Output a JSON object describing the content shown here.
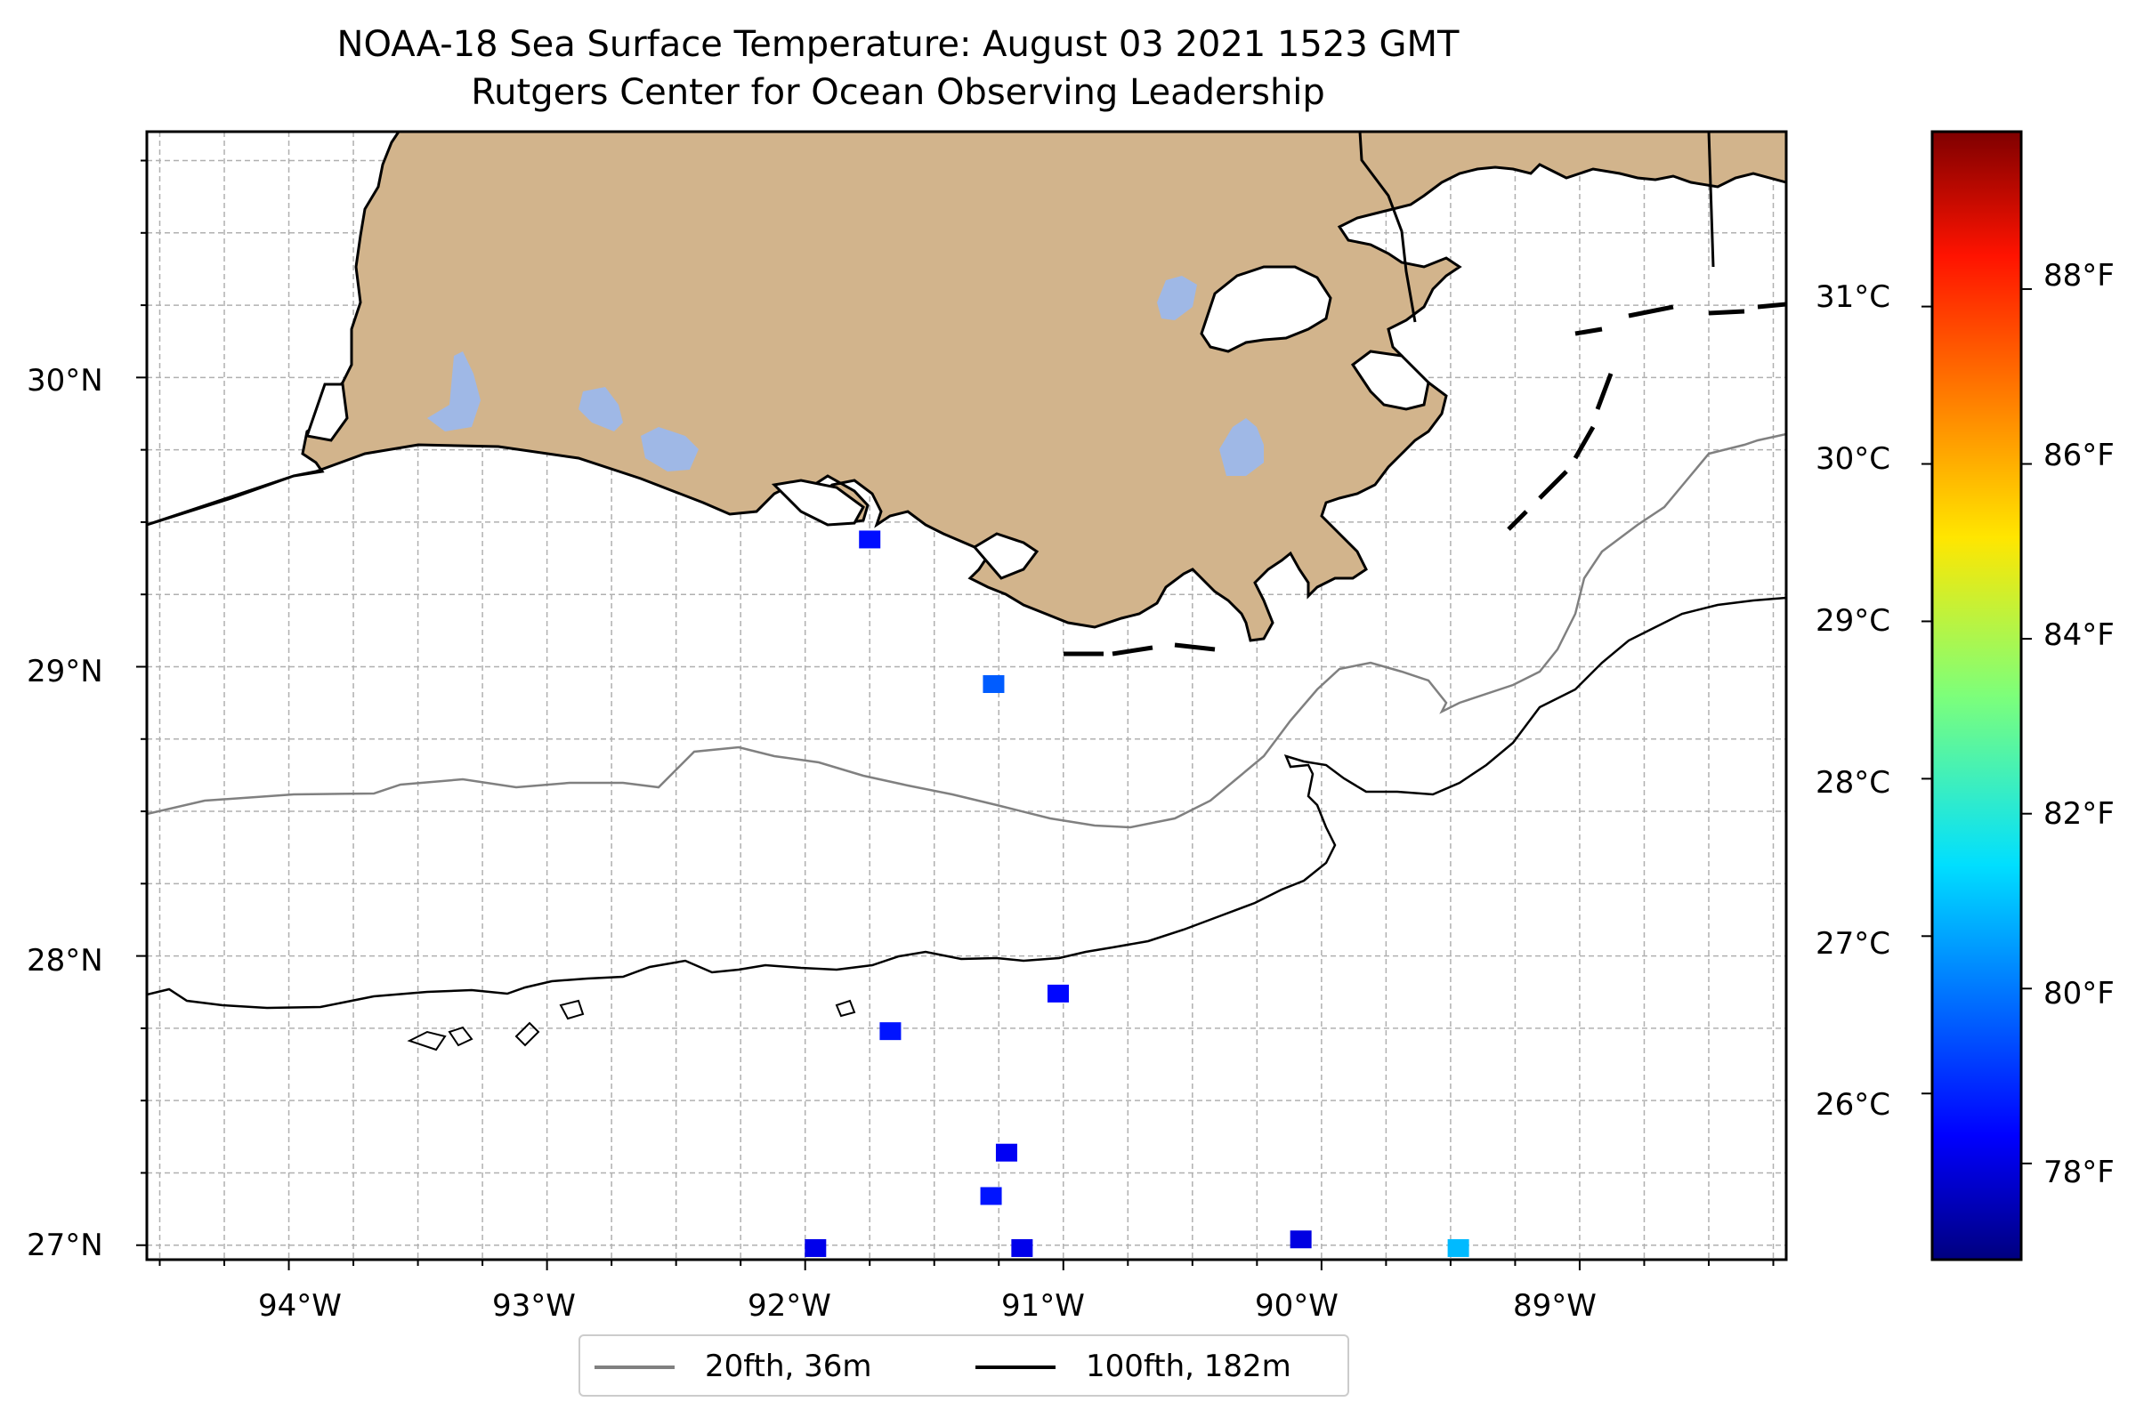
{
  "title": {
    "line1": "NOAA-18 Sea Surface Temperature: August 03 2021 1523 GMT",
    "line2": "Rutgers Center for Ocean Observing Leadership"
  },
  "map": {
    "lon_range": [
      -94.55,
      -88.2
    ],
    "lat_range": [
      26.95,
      30.85
    ],
    "x_ticks": [
      {
        "lon": -94,
        "label": "94°W"
      },
      {
        "lon": -93,
        "label": "93°W"
      },
      {
        "lon": -92,
        "label": "92°W"
      },
      {
        "lon": -91,
        "label": "91°W"
      },
      {
        "lon": -90,
        "label": "90°W"
      },
      {
        "lon": -89,
        "label": "89°W"
      }
    ],
    "y_ticks": [
      {
        "lat": 30,
        "label": "30°N"
      },
      {
        "lat": 29,
        "label": "29°N"
      },
      {
        "lat": 28,
        "label": "28°N"
      },
      {
        "lat": 27,
        "label": "27°N"
      }
    ],
    "land_color": "#d2b48c",
    "lake_color": "#9fb8e6",
    "gridlines": true
  },
  "legend": {
    "location": "below map",
    "entries": [
      {
        "label": "20fth, 36m",
        "color": "#808080"
      },
      {
        "label": "100fth, 182m",
        "color": "#000000"
      }
    ]
  },
  "colorbar": {
    "colormap": "jet",
    "range_f": [
      76.9,
      89.8
    ],
    "celsius_ticks": [
      "31°C",
      "30°C",
      "29°C",
      "28°C",
      "27°C",
      "26°C"
    ],
    "fahrenheit_ticks": [
      "88°F",
      "86°F",
      "84°F",
      "82°F",
      "80°F",
      "78°F"
    ]
  },
  "sst_pixels": [
    {
      "lon": -91.75,
      "lat": 29.44,
      "f": 78.5
    },
    {
      "lon": -91.27,
      "lat": 28.94,
      "f": 79.6
    },
    {
      "lon": -91.02,
      "lat": 27.87,
      "f": 78.4
    },
    {
      "lon": -91.67,
      "lat": 27.74,
      "f": 78.6
    },
    {
      "lon": -91.22,
      "lat": 27.32,
      "f": 78.2
    },
    {
      "lon": -91.28,
      "lat": 27.17,
      "f": 78.6
    },
    {
      "lon": -91.96,
      "lat": 26.99,
      "f": 78.1
    },
    {
      "lon": -91.16,
      "lat": 26.99,
      "f": 78.1
    },
    {
      "lon": -90.08,
      "lat": 27.02,
      "f": 78.0
    },
    {
      "lon": -89.47,
      "lat": 26.99,
      "f": 80.9
    }
  ]
}
